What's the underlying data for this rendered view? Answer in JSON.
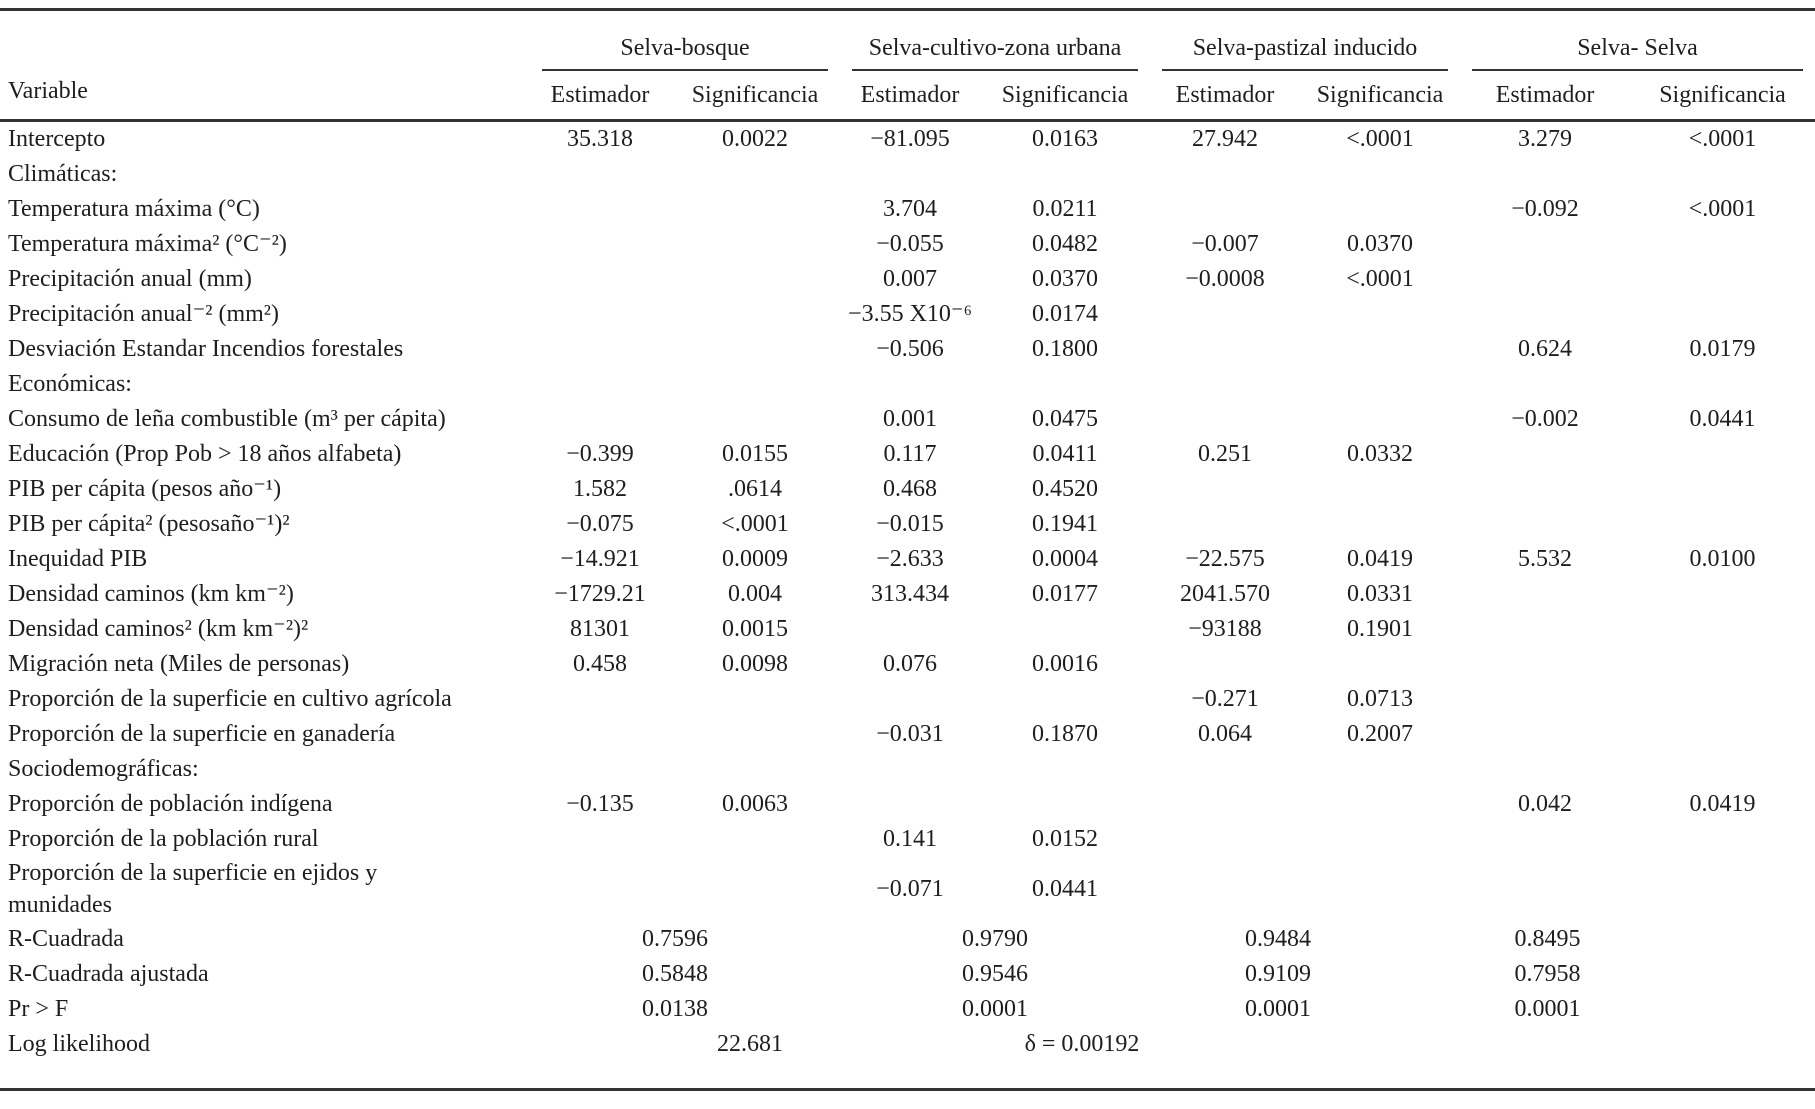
{
  "table": {
    "variable_header": "Variable",
    "groups": [
      {
        "name": "Selva-bosque"
      },
      {
        "name": "Selva-cultivo-zona urbana"
      },
      {
        "name": "Selva-pastizal inducido"
      },
      {
        "name": "Selva- Selva"
      }
    ],
    "subheaders": [
      "Estimador",
      "Significancia"
    ],
    "rows": [
      {
        "label": "Intercepto",
        "cells": [
          "35.318",
          "0.0022",
          "−81.095",
          "0.0163",
          "27.942",
          "<.0001",
          "3.279",
          "<.0001"
        ]
      },
      {
        "label": "Climáticas:",
        "section": true
      },
      {
        "label": "Temperatura máxima (°C)",
        "cells": [
          "",
          "",
          "3.704",
          "0.0211",
          "",
          "",
          "−0.092",
          "<.0001"
        ]
      },
      {
        "label": "Temperatura máxima² (°C⁻²)",
        "cells": [
          "",
          "",
          "−0.055",
          "0.0482",
          "−0.007",
          "0.0370",
          "",
          ""
        ]
      },
      {
        "label": "Precipitación anual (mm)",
        "cells": [
          "",
          "",
          "0.007",
          "0.0370",
          "−0.0008",
          "<.0001",
          "",
          ""
        ]
      },
      {
        "label": "Precipitación anual⁻² (mm²)",
        "cells": [
          "",
          "",
          "−3.55 X10⁻⁶",
          "0.0174",
          "",
          "",
          "",
          ""
        ]
      },
      {
        "label": "Desviación Estandar Incendios forestales",
        "cells": [
          "",
          "",
          "−0.506",
          "0.1800",
          "",
          "",
          "0.624",
          "0.0179"
        ]
      },
      {
        "label": "Económicas:",
        "section": true
      },
      {
        "label": "Consumo de leña combustible (m³ per cápita)",
        "cells": [
          "",
          "",
          "0.001",
          "0.0475",
          "",
          "",
          "−0.002",
          "0.0441"
        ]
      },
      {
        "label": "Educación (Prop Pob > 18 años alfabeta)",
        "cells": [
          "−0.399",
          "0.0155",
          "0.117",
          "0.0411",
          "0.251",
          "0.0332",
          "",
          ""
        ]
      },
      {
        "label": "PIB per cápita (pesos año⁻¹)",
        "cells": [
          "1.582",
          ".0614",
          "0.468",
          "0.4520",
          "",
          "",
          "",
          ""
        ]
      },
      {
        "label": "PIB per cápita² (pesosaño⁻¹)²",
        "cells": [
          "−0.075",
          "<.0001",
          "−0.015",
          "0.1941",
          "",
          "",
          "",
          ""
        ]
      },
      {
        "label": "Inequidad PIB",
        "cells": [
          "−14.921",
          "0.0009",
          "−2.633",
          "0.0004",
          "−22.575",
          "0.0419",
          "5.532",
          "0.0100"
        ]
      },
      {
        "label": "Densidad caminos (km km⁻²)",
        "cells": [
          "−1729.21",
          "0.004",
          "313.434",
          "0.0177",
          "2041.570",
          "0.0331",
          "",
          ""
        ]
      },
      {
        "label": "Densidad caminos² (km km⁻²)²",
        "cells": [
          "81301",
          "0.0015",
          "",
          "",
          "−93188",
          "0.1901",
          "",
          ""
        ]
      },
      {
        "label": "Migración neta (Miles de personas)",
        "cells": [
          "0.458",
          "0.0098",
          "0.076",
          "0.0016",
          "",
          "",
          "",
          ""
        ]
      },
      {
        "label": "Proporción de la superficie en cultivo agrícola",
        "cells": [
          "",
          "",
          "",
          "",
          "−0.271",
          "0.0713",
          "",
          ""
        ]
      },
      {
        "label": "Proporción de la superficie en ganadería",
        "cells": [
          "",
          "",
          "−0.031",
          "0.1870",
          "0.064",
          "0.2007",
          "",
          ""
        ]
      },
      {
        "label": "Sociodemográficas:",
        "section": true
      },
      {
        "label": "Proporción de población indígena",
        "cells": [
          "−0.135",
          "0.0063",
          "",
          "",
          "",
          "",
          "0.042",
          "0.0419"
        ]
      },
      {
        "label": "Proporción de la población rural",
        "cells": [
          "",
          "",
          "0.141",
          "0.0152",
          "",
          "",
          "",
          ""
        ]
      },
      {
        "label": "Proporción de la superficie en ejidos y\nmunidades",
        "twoline": true,
        "cells": [
          "",
          "",
          "−0.071",
          "0.0441",
          "",
          "",
          "",
          ""
        ]
      },
      {
        "label": "R-Cuadrada",
        "stats": [
          "0.7596",
          "0.9790",
          "0.9484",
          "0.8495"
        ]
      },
      {
        "label": "R-Cuadrada ajustada",
        "stats": [
          "0.5848",
          "0.9546",
          "0.9109",
          "0.7958"
        ]
      },
      {
        "label": "Pr > F",
        "stats": [
          "0.0138",
          "0.0001",
          "0.0001",
          "0.0001"
        ]
      },
      {
        "label": "Log likelihood",
        "stats": [
          "22.681",
          "δ = 0.00192",
          "",
          ""
        ],
        "loglik": true
      }
    ]
  }
}
